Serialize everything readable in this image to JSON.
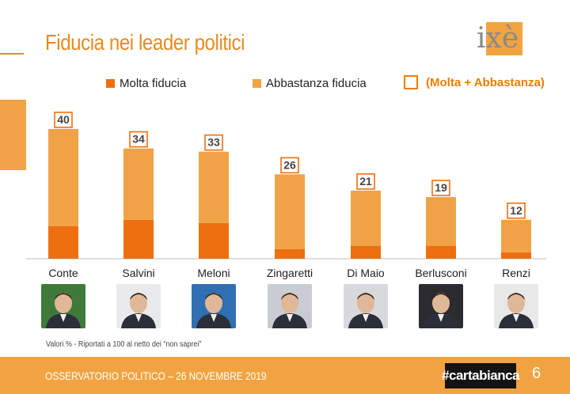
{
  "header": {
    "title": "Fiducia nei leader politici",
    "logo_text": "ixè"
  },
  "legend": {
    "molta": "Molta fiducia",
    "abbastanza": "Abbastanza fiducia",
    "totale": "(Molta + Abbastanza)"
  },
  "colors": {
    "molta": "#ee6f0f",
    "abbastanza": "#f0a346",
    "accent": "#ea8a1e",
    "footer": "#f2a341"
  },
  "chart_data": {
    "type": "bar",
    "stacked": true,
    "title": "Fiducia nei leader politici",
    "categories": [
      "Conte",
      "Salvini",
      "Meloni",
      "Zingaretti",
      "Di Maio",
      "Berlusconi",
      "Renzi"
    ],
    "series": [
      {
        "name": "Molta fiducia",
        "values": [
          10,
          12,
          11,
          3,
          4,
          4,
          2
        ]
      },
      {
        "name": "Abbastanza fiducia",
        "values": [
          30,
          22,
          22,
          23,
          17,
          15,
          10
        ]
      }
    ],
    "totals_label": "(Molta + Abbastanza)",
    "totals": [
      40,
      34,
      33,
      26,
      21,
      19,
      12
    ],
    "ylim": [
      0,
      40
    ],
    "xlabel": "",
    "ylabel": ""
  },
  "photos": [
    {
      "name": "Conte",
      "bg": "#3f7a3a"
    },
    {
      "name": "Salvini",
      "bg": "#e9eaec"
    },
    {
      "name": "Meloni",
      "bg": "#2f6fb2"
    },
    {
      "name": "Zingaretti",
      "bg": "#c9ccd2"
    },
    {
      "name": "Di Maio",
      "bg": "#d8d9dc"
    },
    {
      "name": "Berlusconi",
      "bg": "#2c2c30"
    },
    {
      "name": "Renzi",
      "bg": "#e8e8e8"
    }
  ],
  "note": "Valori % - Riportati a 100 al netto dei “non saprei”",
  "footer": {
    "text": "OSSERVATORIO POLITICO – 26 NOVEMBRE 2019",
    "brand": "#cartabianca",
    "page": "6"
  }
}
